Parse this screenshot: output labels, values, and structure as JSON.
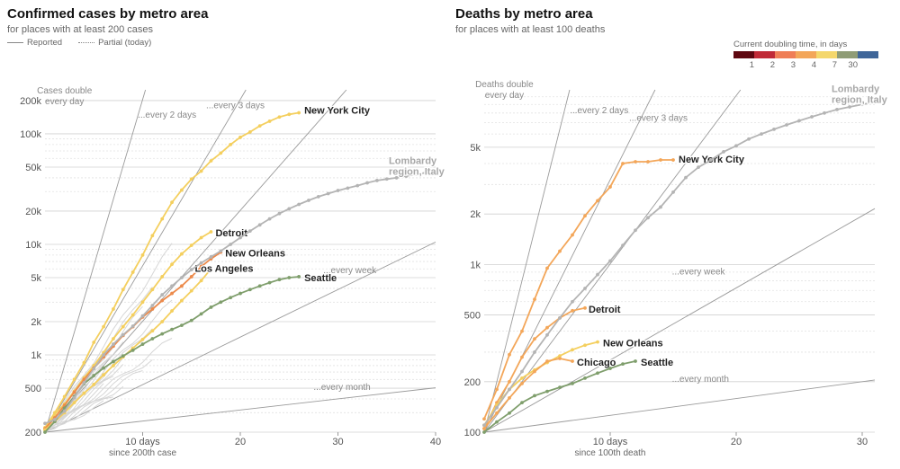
{
  "palette": {
    "grid": "#e2e2e2",
    "ref": "#9a9a9a",
    "bg_series": "#d6d6d6",
    "gray_series": "#b4b4b4",
    "yellow": "#f4cf5e",
    "orange_light": "#f3a659",
    "orange": "#ec8a4b",
    "green": "#7f9e6c",
    "doubling": [
      "#5e0710",
      "#c02a37",
      "#ef7e56",
      "#f3a659",
      "#f4d76c",
      "#8f9c76",
      "#3f6699"
    ]
  },
  "legend": {
    "reported": "Reported",
    "partial": "Partial (today)"
  },
  "doubling_legend": {
    "title": "Current doubling time, in days",
    "labels": [
      "1",
      "2",
      "3",
      "4",
      "7",
      "30"
    ]
  },
  "chart_data": [
    {
      "type": "line",
      "title": "Confirmed cases by metro area",
      "subtitle": "for places with at least 200 cases",
      "xlabel": "since 200th case",
      "ylog": true,
      "xlim": [
        0,
        40
      ],
      "ylim": [
        200,
        250000
      ],
      "x_ticks": [
        10,
        20,
        30,
        40
      ],
      "x_tick_labels": [
        "10 days",
        "20",
        "30",
        "40"
      ],
      "y_ticks": [
        200,
        500,
        1000,
        2000,
        5000,
        10000,
        20000,
        50000,
        100000,
        200000
      ],
      "y_tick_labels": [
        "200",
        "500",
        "1k",
        "2k",
        "5k",
        "10k",
        "20k",
        "50k",
        "100k",
        "200k"
      ],
      "reference_lines": [
        {
          "label": "Cases double every day",
          "label_lines": [
            "Cases double",
            "every day"
          ],
          "doubling_days": 1
        },
        {
          "label": "...every 2 days",
          "doubling_days": 2
        },
        {
          "label": "...every 3 days",
          "doubling_days": 3
        },
        {
          "label": "...every week",
          "doubling_days": 7
        },
        {
          "label": "...every month",
          "doubling_days": 30
        }
      ],
      "series": [
        {
          "name": "New York City",
          "color": "yellow",
          "x": [
            0,
            1,
            2,
            3,
            4,
            5,
            6,
            7,
            8,
            9,
            10,
            11,
            12,
            13,
            14,
            15,
            16,
            17,
            18,
            19,
            20,
            21,
            22,
            23,
            24,
            25,
            26
          ],
          "y": [
            220,
            300,
            420,
            600,
            850,
            1300,
            1800,
            2600,
            3900,
            5600,
            8000,
            12000,
            17000,
            24000,
            31000,
            39000,
            46000,
            57000,
            67000,
            80000,
            93000,
            104000,
            118000,
            130000,
            142000,
            150000,
            155000
          ]
        },
        {
          "name": "Detroit",
          "color": "yellow",
          "x": [
            0,
            1,
            2,
            3,
            4,
            5,
            6,
            7,
            8,
            9,
            10,
            11,
            12,
            13,
            14,
            15,
            16,
            17
          ],
          "y": [
            210,
            290,
            360,
            470,
            620,
            800,
            1050,
            1400,
            1800,
            2300,
            3000,
            3900,
            5100,
            6600,
            8200,
            9800,
            11500,
            13000
          ]
        },
        {
          "name": "New Orleans",
          "color": "orange",
          "x": [
            0,
            1,
            2,
            3,
            4,
            5,
            6,
            7,
            8,
            9,
            10,
            11,
            12,
            13,
            14,
            15,
            16,
            17,
            18
          ],
          "y": [
            215,
            270,
            350,
            460,
            600,
            760,
            960,
            1200,
            1500,
            1800,
            2200,
            2600,
            3100,
            3600,
            4200,
            5100,
            6300,
            7400,
            8500
          ]
        },
        {
          "name": "Los Angeles",
          "color": "yellow",
          "x": [
            0,
            1,
            2,
            3,
            4,
            5,
            6,
            7,
            8,
            9,
            10,
            11,
            12,
            13,
            14,
            15,
            16,
            17
          ],
          "y": [
            210,
            250,
            300,
            370,
            450,
            540,
            660,
            800,
            960,
            1150,
            1380,
            1650,
            2000,
            2500,
            3100,
            3800,
            4700,
            6000
          ]
        },
        {
          "name": "Seattle",
          "color": "green",
          "x": [
            0,
            1,
            2,
            3,
            4,
            5,
            6,
            7,
            8,
            9,
            10,
            11,
            12,
            13,
            14,
            15,
            16,
            17,
            18,
            19,
            20,
            21,
            22,
            23,
            24,
            25,
            26
          ],
          "y": [
            200,
            250,
            330,
            420,
            550,
            650,
            760,
            870,
            980,
            1100,
            1250,
            1400,
            1550,
            1700,
            1850,
            2050,
            2350,
            2700,
            3000,
            3300,
            3600,
            3900,
            4200,
            4500,
            4800,
            5000,
            5100
          ]
        },
        {
          "name": "Lombardy region, Italy",
          "name_lines": [
            "Lombardy",
            "region, Italy"
          ],
          "color": "gray_series",
          "x": [
            0,
            1,
            2,
            3,
            4,
            5,
            6,
            7,
            8,
            9,
            10,
            11,
            12,
            13,
            14,
            15,
            16,
            17,
            18,
            19,
            20,
            21,
            22,
            23,
            24,
            25,
            26,
            27,
            28,
            29,
            30,
            31,
            32,
            33,
            34,
            35,
            36,
            37,
            38,
            39,
            40
          ],
          "y": [
            240,
            260,
            310,
            410,
            560,
            750,
            1000,
            1250,
            1520,
            1820,
            2250,
            2800,
            3500,
            4200,
            5000,
            5900,
            6800,
            7700,
            8700,
            10000,
            11500,
            13200,
            15000,
            17000,
            19000,
            21000,
            23000,
            25000,
            27000,
            28800,
            30700,
            32300,
            34000,
            36000,
            37800,
            39000,
            40000,
            41500,
            43000,
            44500,
            45000
          ]
        }
      ]
    },
    {
      "type": "line",
      "title": "Deaths by metro area",
      "subtitle": "for places with at least 100 deaths",
      "xlabel": "since 100th death",
      "ylog": true,
      "xlim": [
        0,
        31
      ],
      "ylim": [
        100,
        11000
      ],
      "x_ticks": [
        10,
        20,
        30
      ],
      "x_tick_labels": [
        "10 days",
        "20",
        "30"
      ],
      "y_ticks": [
        100,
        200,
        500,
        1000,
        2000,
        5000
      ],
      "y_tick_labels": [
        "100",
        "200",
        "500",
        "1k",
        "2k",
        "5k"
      ],
      "reference_lines": [
        {
          "label": "Deaths double every day",
          "label_lines": [
            "Deaths double",
            "every day"
          ],
          "doubling_days": 1
        },
        {
          "label": "...every 2 days",
          "doubling_days": 2
        },
        {
          "label": "...every 3 days",
          "doubling_days": 3
        },
        {
          "label": "...every week",
          "doubling_days": 7
        },
        {
          "label": "...every month",
          "doubling_days": 30
        }
      ],
      "series": [
        {
          "name": "New York City",
          "color": "orange_light",
          "x": [
            0,
            1,
            2,
            3,
            4,
            5,
            6,
            7,
            8,
            9,
            10,
            11,
            12,
            13,
            14,
            15
          ],
          "y": [
            120,
            180,
            290,
            400,
            620,
            950,
            1200,
            1500,
            1950,
            2400,
            2900,
            4000,
            4100,
            4100,
            4200,
            4200
          ]
        },
        {
          "name": "Detroit",
          "color": "orange_light",
          "x": [
            0,
            1,
            2,
            3,
            4,
            5,
            6,
            7,
            8
          ],
          "y": [
            105,
            150,
            200,
            280,
            360,
            420,
            480,
            530,
            550
          ]
        },
        {
          "name": "New Orleans",
          "color": "yellow",
          "x": [
            0,
            1,
            2,
            3,
            4,
            5,
            6,
            7,
            8,
            9
          ],
          "y": [
            110,
            145,
            180,
            210,
            235,
            260,
            285,
            310,
            330,
            345
          ]
        },
        {
          "name": "Chicago",
          "color": "orange_light",
          "x": [
            0,
            1,
            2,
            3,
            4,
            5,
            6,
            7
          ],
          "y": [
            105,
            130,
            160,
            195,
            230,
            265,
            275,
            265
          ]
        },
        {
          "name": "Seattle",
          "color": "green",
          "x": [
            0,
            1,
            2,
            3,
            4,
            5,
            6,
            7,
            8,
            9,
            10,
            11,
            12
          ],
          "y": [
            100,
            115,
            130,
            150,
            165,
            175,
            185,
            195,
            210,
            225,
            240,
            255,
            265
          ]
        },
        {
          "name": "Lombardy region, Italy",
          "name_lines": [
            "Lombardy",
            "region, Italy"
          ],
          "color": "gray_series",
          "x": [
            0,
            1,
            2,
            3,
            4,
            5,
            6,
            7,
            8,
            9,
            10,
            11,
            12,
            13,
            14,
            15,
            16,
            17,
            18,
            19,
            20,
            21,
            22,
            23,
            24,
            25,
            26,
            27,
            28,
            29,
            30,
            31
          ],
          "y": [
            110,
            140,
            180,
            230,
            300,
            380,
            480,
            600,
            720,
            870,
            1050,
            1300,
            1600,
            1900,
            2200,
            2700,
            3300,
            3800,
            4200,
            4700,
            5100,
            5600,
            6000,
            6400,
            6800,
            7200,
            7600,
            8000,
            8400,
            8700,
            9000,
            9300
          ]
        }
      ]
    }
  ]
}
